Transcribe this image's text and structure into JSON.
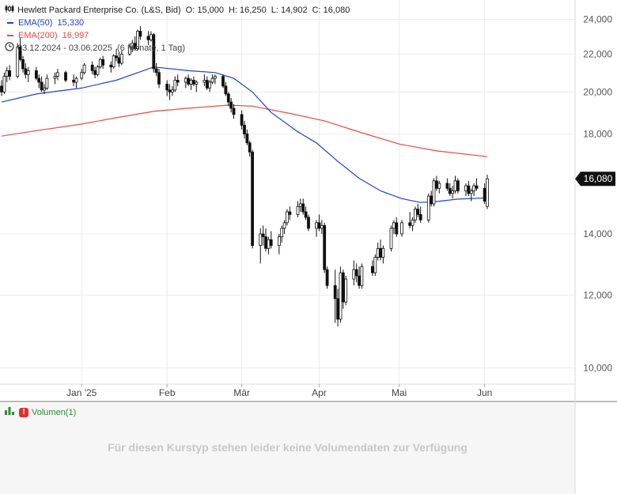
{
  "legend": {
    "title": "Hewlett Packard Enterprise Co. (L&S, Bid)",
    "ohlc": {
      "o_label": "O:",
      "o": "15,000",
      "h_label": "H:",
      "h": "16,250",
      "l_label": "L:",
      "l": "14,902",
      "c_label": "C:",
      "c": "16,080"
    },
    "ema50": {
      "label": "EMA(50)",
      "value": "15,330",
      "color": "#1f3fd8"
    },
    "ema200": {
      "label": "EMA(200)",
      "value": "16,997",
      "color": "#e84a3c"
    },
    "period": "03.12.2024 - 03.06.2025",
    "period_detail": "(6 Monate, 1 Tag)"
  },
  "volume": {
    "label": "Volumen(1)",
    "message": "Für diesen Kurstyp stehen leider keine Volumendaten zur Verfügung"
  },
  "price_tag": "16,080",
  "chart_data": {
    "type": "candlestick",
    "title": "Hewlett Packard Enterprise Co. (L&S, Bid)",
    "yscale": "log",
    "ylim": [
      9.6,
      25.2
    ],
    "y_ticks": [
      {
        "value": 24,
        "label": "24,000"
      },
      {
        "value": 22,
        "label": "22,000"
      },
      {
        "value": 20,
        "label": "20,000"
      },
      {
        "value": 18,
        "label": "18,000"
      },
      {
        "value": 14,
        "label": "14,000"
      },
      {
        "value": 12,
        "label": "12,000"
      },
      {
        "value": 10,
        "label": "10,000"
      }
    ],
    "x_ticks": [
      {
        "date": "2025-01-02",
        "label": "Jan '25"
      },
      {
        "date": "2025-02-03",
        "label": "Feb"
      },
      {
        "date": "2025-03-03",
        "label": "Mär"
      },
      {
        "date": "2025-04-01",
        "label": "Apr"
      },
      {
        "date": "2025-05-01",
        "label": "Mai"
      },
      {
        "date": "2025-06-02",
        "label": "Jun"
      }
    ],
    "current_value": 16.08,
    "grid": true,
    "colors": {
      "up": "#ffffff",
      "down": "#111111",
      "wick": "#111111",
      "grid": "#ececec"
    },
    "candles": [
      [
        "2024-12-03",
        20.3,
        20.6,
        19.8,
        20.0
      ],
      [
        "2024-12-04",
        20.0,
        21.0,
        19.9,
        20.8
      ],
      [
        "2024-12-05",
        20.8,
        21.3,
        20.5,
        21.1
      ],
      [
        "2024-12-06",
        21.1,
        21.4,
        20.6,
        20.8
      ],
      [
        "2024-12-09",
        20.8,
        22.6,
        20.7,
        22.4
      ],
      [
        "2024-12-10",
        22.4,
        22.9,
        21.6,
        21.7
      ],
      [
        "2024-12-11",
        21.7,
        21.9,
        21.0,
        21.2
      ],
      [
        "2024-12-12",
        21.2,
        21.5,
        20.7,
        20.9
      ],
      [
        "2024-12-13",
        20.9,
        21.3,
        20.5,
        21.1
      ],
      [
        "2024-12-16",
        21.1,
        21.3,
        20.6,
        20.7
      ],
      [
        "2024-12-17",
        20.7,
        20.9,
        20.2,
        20.5
      ],
      [
        "2024-12-18",
        20.5,
        20.8,
        20.0,
        20.1
      ],
      [
        "2024-12-19",
        20.1,
        20.4,
        19.9,
        20.2
      ],
      [
        "2024-12-20",
        20.2,
        20.9,
        20.1,
        20.7
      ],
      [
        "2024-12-23",
        20.7,
        21.0,
        20.4,
        20.8
      ],
      [
        "2024-12-24",
        20.8,
        21.2,
        20.6,
        21.0
      ],
      [
        "2024-12-27",
        21.0,
        21.1,
        20.5,
        20.6
      ],
      [
        "2024-12-30",
        20.6,
        20.9,
        20.3,
        20.5
      ],
      [
        "2024-12-31",
        20.5,
        20.8,
        20.2,
        20.7
      ],
      [
        "2025-01-02",
        20.7,
        21.2,
        20.6,
        21.0
      ],
      [
        "2025-01-03",
        21.0,
        21.5,
        20.9,
        21.4
      ],
      [
        "2025-01-06",
        21.4,
        21.6,
        20.9,
        21.1
      ],
      [
        "2025-01-07",
        21.1,
        21.3,
        20.7,
        20.9
      ],
      [
        "2025-01-08",
        20.9,
        21.4,
        20.8,
        21.3
      ],
      [
        "2025-01-09",
        21.3,
        21.8,
        21.2,
        21.7
      ],
      [
        "2025-01-10",
        21.7,
        21.9,
        21.2,
        21.4
      ],
      [
        "2025-01-13",
        21.4,
        21.6,
        21.0,
        21.3
      ],
      [
        "2025-01-14",
        21.3,
        22.0,
        21.2,
        21.9
      ],
      [
        "2025-01-15",
        21.9,
        22.3,
        21.6,
        21.8
      ],
      [
        "2025-01-16",
        21.8,
        22.1,
        21.3,
        21.5
      ],
      [
        "2025-01-17",
        21.5,
        22.2,
        21.4,
        22.0
      ],
      [
        "2025-01-20",
        22.0,
        22.6,
        21.9,
        22.4
      ],
      [
        "2025-01-21",
        22.4,
        22.8,
        22.1,
        22.6
      ],
      [
        "2025-01-22",
        22.6,
        23.0,
        22.2,
        22.3
      ],
      [
        "2025-01-23",
        22.3,
        23.4,
        22.2,
        23.3
      ],
      [
        "2025-01-24",
        23.3,
        23.6,
        22.8,
        23.0
      ],
      [
        "2025-01-27",
        23.0,
        23.3,
        22.5,
        22.8
      ],
      [
        "2025-01-28",
        22.8,
        23.3,
        22.7,
        23.1
      ],
      [
        "2025-01-29",
        23.1,
        23.2,
        21.0,
        21.2
      ],
      [
        "2025-01-30",
        21.2,
        21.5,
        20.8,
        21.0
      ],
      [
        "2025-01-31",
        21.0,
        21.2,
        20.2,
        20.4
      ],
      [
        "2025-02-03",
        20.4,
        20.6,
        19.8,
        20.1
      ],
      [
        "2025-02-04",
        20.1,
        20.4,
        19.6,
        20.0
      ],
      [
        "2025-02-05",
        20.0,
        20.3,
        19.8,
        20.1
      ],
      [
        "2025-02-06",
        20.1,
        20.8,
        20.0,
        20.6
      ],
      [
        "2025-02-07",
        20.6,
        20.9,
        20.3,
        20.5
      ],
      [
        "2025-02-10",
        20.5,
        20.8,
        20.2,
        20.7
      ],
      [
        "2025-02-11",
        20.7,
        20.9,
        20.3,
        20.4
      ],
      [
        "2025-02-12",
        20.4,
        20.7,
        20.1,
        20.6
      ],
      [
        "2025-02-13",
        20.6,
        20.8,
        20.3,
        20.4
      ],
      [
        "2025-02-14",
        20.4,
        20.6,
        20.0,
        20.5
      ],
      [
        "2025-02-17",
        20.5,
        20.9,
        20.3,
        20.6
      ],
      [
        "2025-02-18",
        20.6,
        20.8,
        20.1,
        20.2
      ],
      [
        "2025-02-19",
        20.2,
        20.6,
        20.0,
        20.5
      ],
      [
        "2025-02-20",
        20.5,
        20.9,
        20.4,
        20.7
      ],
      [
        "2025-02-21",
        20.7,
        20.9,
        20.4,
        20.8
      ],
      [
        "2025-02-24",
        20.8,
        20.9,
        20.2,
        20.3
      ],
      [
        "2025-02-25",
        20.3,
        20.5,
        19.8,
        19.9
      ],
      [
        "2025-02-26",
        19.9,
        20.0,
        19.3,
        19.5
      ],
      [
        "2025-02-27",
        19.5,
        19.7,
        19.0,
        19.2
      ],
      [
        "2025-02-28",
        19.2,
        19.4,
        18.7,
        18.9
      ],
      [
        "2025-03-03",
        18.9,
        19.1,
        18.2,
        18.4
      ],
      [
        "2025-03-04",
        18.4,
        18.6,
        17.8,
        18.0
      ],
      [
        "2025-03-05",
        18.0,
        18.2,
        17.5,
        17.6
      ],
      [
        "2025-03-06",
        17.6,
        17.7,
        17.0,
        17.2
      ],
      [
        "2025-03-07",
        17.2,
        17.3,
        13.5,
        13.6
      ],
      [
        "2025-03-10",
        13.6,
        14.2,
        13.0,
        14.0
      ],
      [
        "2025-03-11",
        14.0,
        14.3,
        13.6,
        13.9
      ],
      [
        "2025-03-12",
        13.9,
        14.2,
        13.4,
        13.5
      ],
      [
        "2025-03-13",
        13.5,
        13.9,
        13.3,
        13.8
      ],
      [
        "2025-03-14",
        13.8,
        14.1,
        13.5,
        13.6
      ],
      [
        "2025-03-17",
        13.6,
        14.0,
        13.3,
        13.9
      ],
      [
        "2025-03-18",
        13.9,
        14.3,
        13.7,
        14.2
      ],
      [
        "2025-03-19",
        14.2,
        14.5,
        14.0,
        14.4
      ],
      [
        "2025-03-20",
        14.4,
        14.9,
        14.3,
        14.8
      ],
      [
        "2025-03-21",
        14.8,
        15.0,
        14.5,
        14.7
      ],
      [
        "2025-03-24",
        14.7,
        15.2,
        14.6,
        15.0
      ],
      [
        "2025-03-25",
        15.0,
        15.3,
        14.8,
        15.1
      ],
      [
        "2025-03-26",
        15.1,
        15.3,
        14.7,
        14.8
      ],
      [
        "2025-03-27",
        14.8,
        15.0,
        14.5,
        14.6
      ],
      [
        "2025-03-28",
        14.6,
        14.7,
        14.1,
        14.2
      ],
      [
        "2025-03-31",
        14.2,
        14.5,
        13.9,
        14.4
      ],
      [
        "2025-04-01",
        14.4,
        14.7,
        14.1,
        14.2
      ],
      [
        "2025-04-02",
        14.2,
        14.5,
        14.0,
        14.3
      ],
      [
        "2025-04-03",
        14.3,
        14.4,
        12.7,
        12.8
      ],
      [
        "2025-04-04",
        12.8,
        12.9,
        12.2,
        12.3
      ],
      [
        "2025-04-07",
        12.3,
        12.8,
        11.2,
        11.9
      ],
      [
        "2025-04-08",
        11.9,
        12.2,
        11.1,
        11.3
      ],
      [
        "2025-04-09",
        11.3,
        12.9,
        11.2,
        12.7
      ],
      [
        "2025-04-10",
        12.7,
        12.8,
        11.6,
        11.8
      ],
      [
        "2025-04-11",
        11.8,
        12.6,
        11.7,
        12.5
      ],
      [
        "2025-04-14",
        12.5,
        13.1,
        12.3,
        12.8
      ],
      [
        "2025-04-15",
        12.8,
        13.0,
        12.4,
        12.6
      ],
      [
        "2025-04-16",
        12.6,
        12.9,
        12.2,
        12.3
      ],
      [
        "2025-04-17",
        12.3,
        13.0,
        12.2,
        12.9
      ],
      [
        "2025-04-21",
        12.9,
        13.1,
        12.6,
        12.7
      ],
      [
        "2025-04-22",
        12.7,
        13.3,
        12.6,
        13.2
      ],
      [
        "2025-04-23",
        13.2,
        13.7,
        13.1,
        13.5
      ],
      [
        "2025-04-24",
        13.5,
        13.8,
        13.1,
        13.2
      ],
      [
        "2025-04-25",
        13.2,
        13.6,
        13.0,
        13.5
      ],
      [
        "2025-04-28",
        13.5,
        14.3,
        13.4,
        14.2
      ],
      [
        "2025-04-29",
        14.2,
        14.5,
        14.0,
        14.4
      ],
      [
        "2025-04-30",
        14.4,
        14.6,
        13.9,
        14.0
      ],
      [
        "2025-05-02",
        14.0,
        14.5,
        13.9,
        14.4
      ],
      [
        "2025-05-05",
        14.4,
        14.8,
        14.2,
        14.3
      ],
      [
        "2025-05-06",
        14.3,
        14.6,
        14.1,
        14.5
      ],
      [
        "2025-05-07",
        14.5,
        15.0,
        14.4,
        14.9
      ],
      [
        "2025-05-08",
        14.9,
        15.1,
        14.6,
        14.7
      ],
      [
        "2025-05-09",
        14.7,
        15.0,
        14.4,
        14.5
      ],
      [
        "2025-05-12",
        14.5,
        15.5,
        14.4,
        15.4
      ],
      [
        "2025-05-13",
        15.4,
        15.6,
        15.0,
        15.1
      ],
      [
        "2025-05-14",
        15.1,
        16.1,
        15.0,
        16.0
      ],
      [
        "2025-05-15",
        16.0,
        16.2,
        15.6,
        15.7
      ],
      [
        "2025-05-16",
        15.7,
        16.0,
        15.5,
        15.9
      ],
      [
        "2025-05-19",
        15.9,
        16.1,
        15.6,
        15.7
      ],
      [
        "2025-05-20",
        15.7,
        15.9,
        15.4,
        15.5
      ],
      [
        "2025-05-21",
        15.5,
        15.8,
        15.3,
        15.6
      ],
      [
        "2025-05-22",
        15.6,
        16.2,
        15.5,
        16.0
      ],
      [
        "2025-05-23",
        16.0,
        16.1,
        15.5,
        15.6
      ],
      [
        "2025-05-26",
        15.6,
        15.9,
        15.4,
        15.8
      ],
      [
        "2025-05-27",
        15.8,
        16.0,
        15.4,
        15.5
      ],
      [
        "2025-05-28",
        15.5,
        15.7,
        15.2,
        15.6
      ],
      [
        "2025-05-29",
        15.6,
        15.9,
        15.4,
        15.8
      ],
      [
        "2025-05-30",
        15.8,
        16.1,
        15.6,
        15.7
      ],
      [
        "2025-06-02",
        15.7,
        15.9,
        15.1,
        15.2
      ],
      [
        "2025-06-03",
        15.0,
        16.25,
        14.902,
        16.08
      ]
    ],
    "series": [
      {
        "name": "EMA(50)",
        "color": "#1f3fd8",
        "points": [
          [
            "2024-12-03",
            19.5
          ],
          [
            "2024-12-16",
            19.9
          ],
          [
            "2025-01-02",
            20.2
          ],
          [
            "2025-01-15",
            20.6
          ],
          [
            "2025-01-29",
            21.3
          ],
          [
            "2025-02-11",
            21.1
          ],
          [
            "2025-02-21",
            21.0
          ],
          [
            "2025-02-28",
            20.7
          ],
          [
            "2025-03-07",
            20.0
          ],
          [
            "2025-03-14",
            19.0
          ],
          [
            "2025-03-24",
            18.1
          ],
          [
            "2025-03-31",
            17.6
          ],
          [
            "2025-04-08",
            16.8
          ],
          [
            "2025-04-16",
            16.1
          ],
          [
            "2025-04-24",
            15.6
          ],
          [
            "2025-05-02",
            15.3
          ],
          [
            "2025-05-09",
            15.15
          ],
          [
            "2025-05-16",
            15.2
          ],
          [
            "2025-05-23",
            15.28
          ],
          [
            "2025-06-03",
            15.33
          ]
        ]
      },
      {
        "name": "EMA(200)",
        "color": "#e84a3c",
        "points": [
          [
            "2024-12-03",
            17.9
          ],
          [
            "2024-12-16",
            18.15
          ],
          [
            "2025-01-02",
            18.45
          ],
          [
            "2025-01-15",
            18.75
          ],
          [
            "2025-01-29",
            19.05
          ],
          [
            "2025-02-11",
            19.2
          ],
          [
            "2025-02-26",
            19.35
          ],
          [
            "2025-03-07",
            19.3
          ],
          [
            "2025-03-21",
            18.95
          ],
          [
            "2025-04-03",
            18.6
          ],
          [
            "2025-04-17",
            18.05
          ],
          [
            "2025-05-01",
            17.55
          ],
          [
            "2025-05-15",
            17.25
          ],
          [
            "2025-06-03",
            17.0
          ]
        ]
      }
    ]
  }
}
